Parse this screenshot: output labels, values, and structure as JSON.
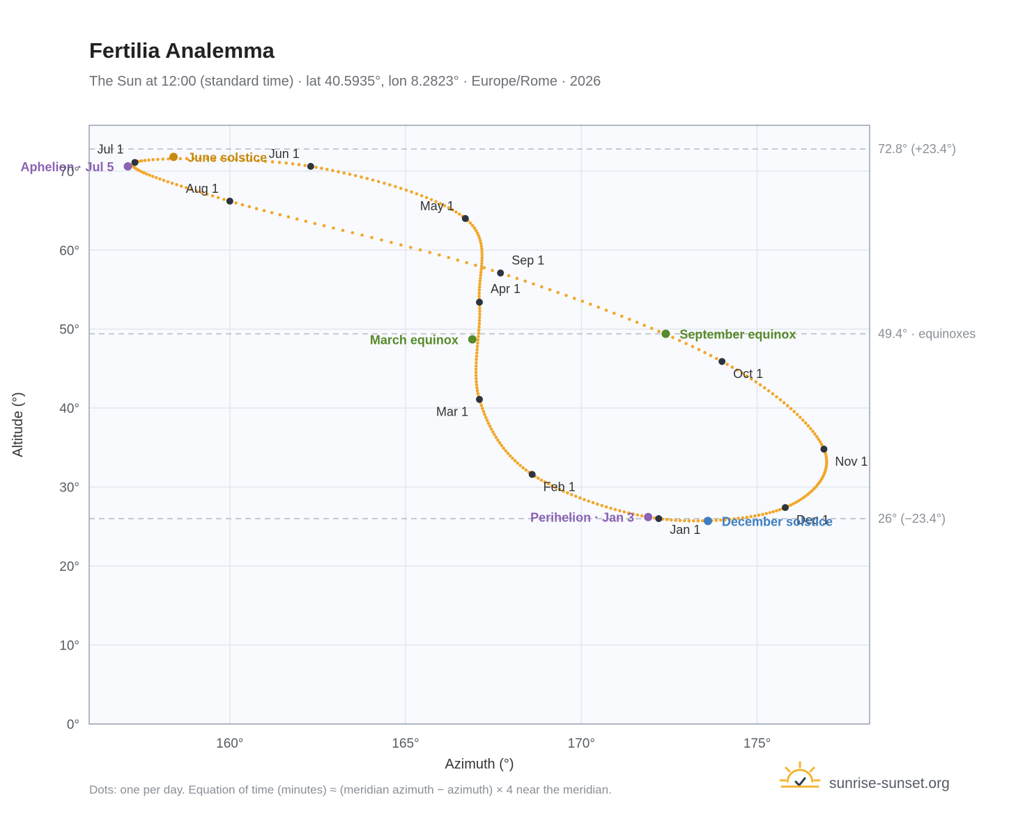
{
  "header": {
    "title": "Fertilia Analemma",
    "subtitle": "The Sun at 12:00 (standard time) · lat 40.5935°, lon 8.2823° · Europe/Rome · 2026"
  },
  "chart_data": {
    "type": "scatter",
    "xlabel": "Azimuth (°)",
    "ylabel": "Altitude (°)",
    "xlim": [
      156,
      178.2
    ],
    "ylim": [
      0,
      75.8
    ],
    "xticks": [
      160,
      165,
      170,
      175
    ],
    "yticks": [
      0,
      10,
      20,
      30,
      40,
      50,
      60,
      70
    ],
    "x_tick_labels": [
      "160°",
      "165°",
      "170°",
      "175°"
    ],
    "y_tick_labels": [
      "0°",
      "10°",
      "20°",
      "30°",
      "40°",
      "50°",
      "60°",
      "70°"
    ],
    "grid": true,
    "series_color": "#f2a72a",
    "reference_lines": [
      {
        "y": 72.8,
        "label": "72.8° (+23.4°)"
      },
      {
        "y": 49.4,
        "label": "49.4° · equinoxes"
      },
      {
        "y": 26,
        "label": "26° (−23.4°)"
      }
    ],
    "month_markers": [
      {
        "label": "Jan 1",
        "x": 172.2,
        "y": 26.0
      },
      {
        "label": "Feb 1",
        "x": 168.6,
        "y": 31.6
      },
      {
        "label": "Mar 1",
        "x": 167.1,
        "y": 41.1
      },
      {
        "label": "Apr 1",
        "x": 167.1,
        "y": 53.4
      },
      {
        "label": "May 1",
        "x": 166.7,
        "y": 64.0
      },
      {
        "label": "Jun 1",
        "x": 162.3,
        "y": 70.6
      },
      {
        "label": "Jul 1",
        "x": 157.3,
        "y": 71.1
      },
      {
        "label": "Aug 1",
        "x": 160.0,
        "y": 66.2
      },
      {
        "label": "Sep 1",
        "x": 167.7,
        "y": 57.1
      },
      {
        "label": "Oct 1",
        "x": 174.0,
        "y": 45.9
      },
      {
        "label": "Nov 1",
        "x": 176.9,
        "y": 34.8
      },
      {
        "label": "Dec 1",
        "x": 175.8,
        "y": 27.4
      }
    ],
    "events": [
      {
        "label": "June solstice",
        "x": 158.4,
        "y": 71.8,
        "color": "#c58a12"
      },
      {
        "label": "Aphelion · Jul 5",
        "x": 157.1,
        "y": 70.6,
        "color": "#8c62b3"
      },
      {
        "label": "March equinox",
        "x": 166.9,
        "y": 48.7,
        "color": "#578a2a"
      },
      {
        "label": "September equinox",
        "x": 172.4,
        "y": 49.4,
        "color": "#578a2a"
      },
      {
        "label": "Perihelion · Jan 3",
        "x": 171.9,
        "y": 26.2,
        "color": "#8c62b3"
      },
      {
        "label": "December solstice",
        "x": 173.6,
        "y": 25.7,
        "color": "#3f7ec0"
      }
    ]
  },
  "footer": {
    "note": "Dots: one per day. Equation of time (minutes) ≈ (meridian azimuth − azimuth) × 4 near the meridian.",
    "brand": "sunrise-sunset.org"
  }
}
